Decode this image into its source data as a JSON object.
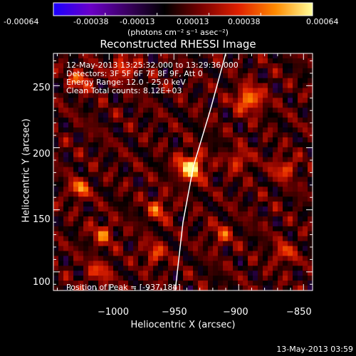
{
  "colorbar": {
    "ticks": [
      "-0.00064",
      "-0.00038",
      "-0.00013",
      "0.00013",
      "0.00038",
      "0.00064"
    ],
    "unit_label": "(photons cm⁻² s⁻¹ asec⁻²)",
    "colors": [
      "#1a00ff",
      "#6a00c8",
      "#3a0060",
      "#000000",
      "#7a0000",
      "#e02000",
      "#ff8a00",
      "#ffff9a"
    ]
  },
  "chart_data": {
    "type": "heatmap",
    "title": "Reconstructed RHESSI Image",
    "xlabel": "Heliocentric X (arcsec)",
    "ylabel": "Heliocentric Y (arcsec)",
    "xlim": [
      -1043,
      -843
    ],
    "ylim": [
      85,
      276
    ],
    "xticks": [
      -1000,
      -950,
      -900,
      -850
    ],
    "yticks": [
      100,
      150,
      200,
      250
    ],
    "xticklabels": [
      "−1000",
      "−950",
      "−900",
      "−850"
    ],
    "yticklabels": [
      "100",
      "150",
      "200",
      "250"
    ],
    "info_lines": [
      "12-May-2013 13:25:32.000 to 13:29:36.000",
      "Detectors: 3F 5F 6F 7F 8F 9F, Att 0",
      "Energy Range: 12.0 - 25.0 keV",
      "Clean    Total counts: 8.12E+03"
    ],
    "peak_label": "Position of Peak = [-937,184]",
    "peak": {
      "x": -937,
      "y": 184
    },
    "limb": [
      [
        -949,
        85
      ],
      [
        -943,
        140
      ],
      [
        -935,
        185
      ],
      [
        -922,
        230
      ],
      [
        -910,
        276
      ]
    ],
    "sources": [
      {
        "x": -937,
        "y": 184,
        "amp": 1.0,
        "sigma": 7
      },
      {
        "x": -892,
        "y": 239,
        "amp": 0.75,
        "sigma": 7
      },
      {
        "x": -1023,
        "y": 167,
        "amp": 0.7,
        "sigma": 5
      },
      {
        "x": -989,
        "y": 264,
        "amp": 0.6,
        "sigma": 6
      },
      {
        "x": -1022,
        "y": 255,
        "amp": 0.55,
        "sigma": 6
      },
      {
        "x": -865,
        "y": 183,
        "amp": 0.5,
        "sigma": 6
      },
      {
        "x": -1005,
        "y": 130,
        "amp": 0.5,
        "sigma": 6
      },
      {
        "x": -962,
        "y": 150,
        "amp": 0.5,
        "sigma": 6
      },
      {
        "x": -965,
        "y": 115,
        "amp": 0.45,
        "sigma": 6
      },
      {
        "x": -1008,
        "y": 100,
        "amp": 0.45,
        "sigma": 6
      },
      {
        "x": -900,
        "y": 190,
        "amp": 0.45,
        "sigma": 6
      },
      {
        "x": -865,
        "y": 115,
        "amp": 0.45,
        "sigma": 6
      },
      {
        "x": -913,
        "y": 130,
        "amp": 0.4,
        "sigma": 6
      }
    ]
  },
  "footer": {
    "timestamp": "13-May-2013 03:59"
  }
}
